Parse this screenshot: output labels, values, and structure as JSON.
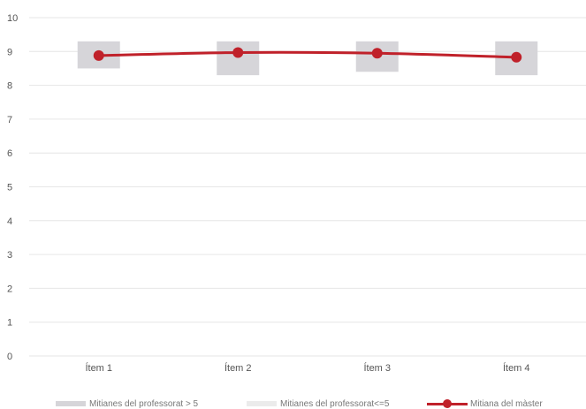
{
  "chart_data": {
    "type": "line",
    "categories": [
      "Ítem 1",
      "Ítem 2",
      "Ítem 3",
      "Ítem 4"
    ],
    "ylim": [
      0,
      10
    ],
    "yticks": [
      "0",
      "1",
      "2",
      "3",
      "4",
      "5",
      "6",
      "7",
      "8",
      "9",
      "10"
    ],
    "grid": true,
    "legend_position": "bottom",
    "series": [
      {
        "name": "Mitianes del professorat > 5",
        "type": "range",
        "low": [
          8.5,
          8.3,
          8.4,
          8.3
        ],
        "high": [
          9.3,
          9.3,
          9.3,
          9.3
        ]
      },
      {
        "name": "Mitianes del professorat<=5",
        "type": "range",
        "low": [],
        "high": []
      },
      {
        "name": "Mitiana del màster",
        "type": "line",
        "values": [
          8.88,
          8.97,
          8.95,
          8.83
        ]
      }
    ],
    "colors": {
      "range_high": "#d6d5d9",
      "range_low": "#ebebeb",
      "line": "#c0212a",
      "grid": "#e6e6e6",
      "axis_text": "#555555"
    }
  },
  "legend": {
    "item_1": "Mitianes del professorat > 5",
    "item_2": "Mitianes del professorat<=5",
    "item_3": "Mitiana del màster"
  }
}
